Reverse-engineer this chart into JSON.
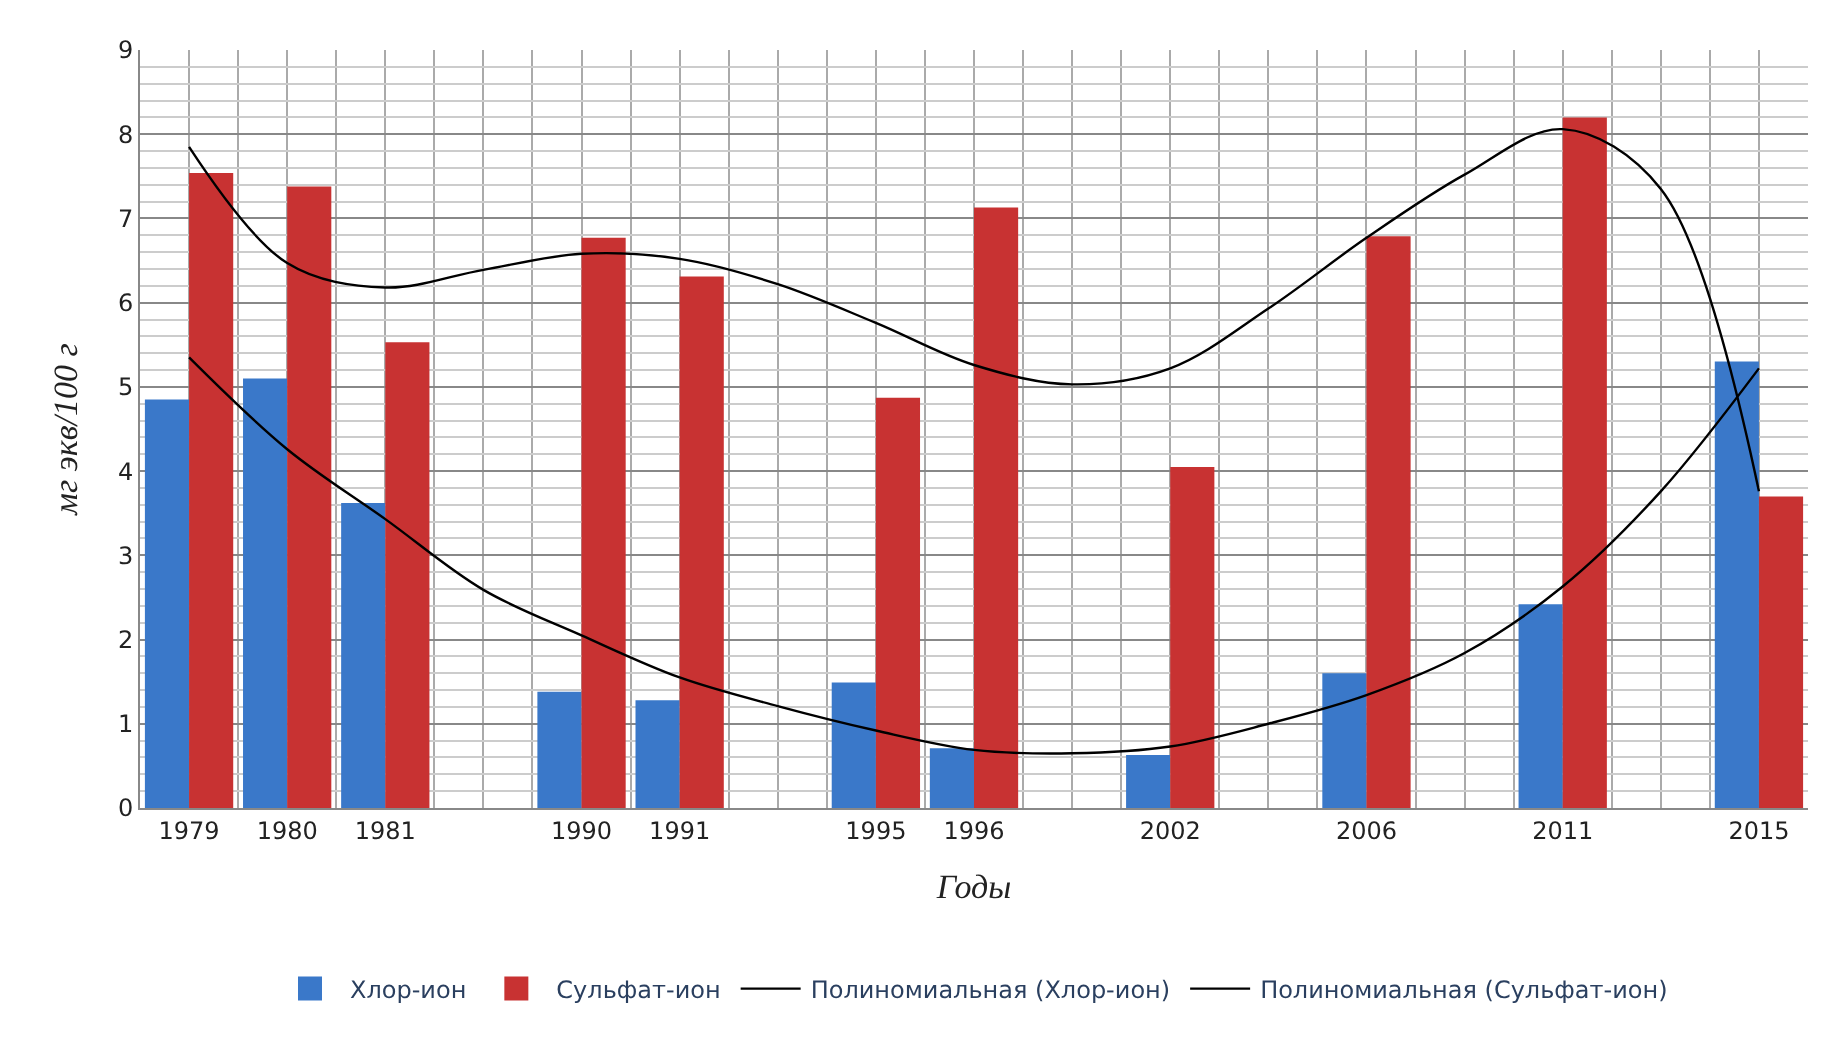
{
  "chart_data": {
    "type": "bar",
    "xlabel": "Годы",
    "ylabel": "мг экв/100 г",
    "categories": [
      "1979",
      "1980",
      "1981",
      null,
      "1990",
      "1991",
      null,
      "1995",
      "1996",
      null,
      "2002",
      null,
      "2006",
      null,
      "2011",
      null,
      "2015"
    ],
    "series": [
      {
        "name": "Хлор-ион",
        "color": "#3a78c9",
        "values": [
          4.85,
          5.1,
          3.62,
          null,
          1.38,
          1.28,
          null,
          1.49,
          0.71,
          null,
          0.63,
          null,
          1.6,
          null,
          2.42,
          null,
          5.3
        ]
      },
      {
        "name": "Сульфат-ион",
        "color": "#c83232",
        "values": [
          7.54,
          7.38,
          5.53,
          null,
          6.77,
          6.31,
          null,
          4.87,
          7.13,
          null,
          4.05,
          null,
          6.79,
          null,
          8.2,
          null,
          3.7
        ]
      },
      {
        "name": "Полиномиальная (Хлор-ион)",
        "type": "line",
        "color": "#000000",
        "values": [
          5.35,
          4.26,
          3.43,
          2.59,
          2.05,
          1.55,
          1.21,
          0.92,
          0.69,
          0.65,
          0.73,
          1.0,
          1.34,
          1.84,
          2.63,
          3.76,
          5.22
        ]
      },
      {
        "name": "Полиномиальная (Сульфат-ион)",
        "type": "line",
        "color": "#000000",
        "values": [
          7.85,
          6.47,
          6.18,
          6.39,
          6.58,
          6.52,
          6.22,
          5.76,
          5.26,
          5.03,
          5.22,
          5.93,
          6.77,
          7.52,
          8.06,
          7.35,
          3.76
        ]
      }
    ],
    "ylim": [
      0,
      9
    ],
    "yticks": [
      0,
      1,
      2,
      3,
      4,
      5,
      6,
      7,
      8,
      9
    ],
    "grid": true,
    "legend": "bottom",
    "line_style": "solid",
    "marker": "none"
  }
}
